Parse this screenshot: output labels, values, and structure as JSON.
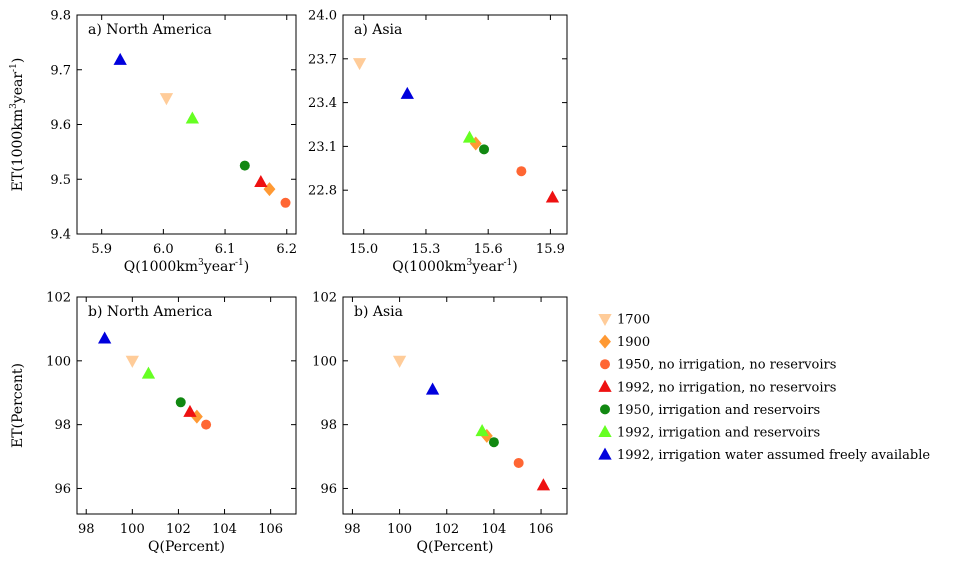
{
  "chart_data": [
    {
      "type": "scatter",
      "title": "a) North America",
      "xlabel": "Q(1000km³year⁻¹)",
      "ylabel": "ET(1000km³year⁻¹)",
      "xlim": [
        5.86,
        6.215
      ],
      "ylim": [
        9.4,
        9.8
      ],
      "xticks": [
        "5.9",
        "6.0",
        "6.1",
        "6.2"
      ],
      "yticks": [
        "9.4",
        "9.5",
        "9.6",
        "9.7",
        "9.8"
      ],
      "points": [
        {
          "series": "1700",
          "x": 6.005,
          "y": 9.648
        },
        {
          "series": "1900",
          "x": 6.172,
          "y": 9.482
        },
        {
          "series": "1950, no irrigation, no reservoirs",
          "x": 6.198,
          "y": 9.457
        },
        {
          "series": "1992, no irrigation, no reservoirs",
          "x": 6.158,
          "y": 9.495
        },
        {
          "series": "1950, irrigation and reservoirs",
          "x": 6.132,
          "y": 9.525
        },
        {
          "series": "1992, irrigation and reservoirs",
          "x": 6.047,
          "y": 9.611
        },
        {
          "series": "1992, irrigation water assumed freely available",
          "x": 5.93,
          "y": 9.718
        }
      ]
    },
    {
      "type": "scatter",
      "title": "a) Asia",
      "xlabel": "Q(1000km³year⁻¹)",
      "ylabel": "",
      "xlim": [
        14.9,
        15.98
      ],
      "ylim": [
        22.5,
        24.0
      ],
      "xticks": [
        "15.0",
        "15.3",
        "15.6",
        "15.9"
      ],
      "yticks": [
        "22.8",
        "23.1",
        "23.4",
        "23.7",
        "24.0"
      ],
      "points": [
        {
          "series": "1700",
          "x": 14.98,
          "y": 23.67
        },
        {
          "series": "1900",
          "x": 15.54,
          "y": 23.12
        },
        {
          "series": "1950, no irrigation, no reservoirs",
          "x": 15.76,
          "y": 22.93
        },
        {
          "series": "1992, no irrigation, no reservoirs",
          "x": 15.91,
          "y": 22.75
        },
        {
          "series": "1950, irrigation and reservoirs",
          "x": 15.58,
          "y": 23.08
        },
        {
          "series": "1992, irrigation and reservoirs",
          "x": 15.51,
          "y": 23.16
        },
        {
          "series": "1992, irrigation water assumed freely available",
          "x": 15.21,
          "y": 23.46
        }
      ]
    },
    {
      "type": "scatter",
      "title": "b) North America",
      "xlabel": "Q(Percent)",
      "ylabel": "ET(Percent)",
      "xlim": [
        97.6,
        107.1
      ],
      "ylim": [
        95.2,
        102
      ],
      "xticks": [
        "98",
        "100",
        "102",
        "104",
        "106"
      ],
      "yticks": [
        "96",
        "98",
        "100",
        "102"
      ],
      "points": [
        {
          "series": "1700",
          "x": 100.0,
          "y": 100.0
        },
        {
          "series": "1900",
          "x": 102.8,
          "y": 98.25
        },
        {
          "series": "1950, no irrigation, no reservoirs",
          "x": 103.2,
          "y": 98.0
        },
        {
          "series": "1992, no irrigation, no reservoirs",
          "x": 102.5,
          "y": 98.4
        },
        {
          "series": "1950, irrigation and reservoirs",
          "x": 102.1,
          "y": 98.7
        },
        {
          "series": "1992, irrigation and reservoirs",
          "x": 100.7,
          "y": 99.6
        },
        {
          "series": "1992, irrigation water assumed freely available",
          "x": 98.8,
          "y": 100.7
        }
      ]
    },
    {
      "type": "scatter",
      "title": "b) Asia",
      "xlabel": "Q(Percent)",
      "ylabel": "",
      "xlim": [
        97.6,
        107.1
      ],
      "ylim": [
        95.2,
        102
      ],
      "xticks": [
        "98",
        "100",
        "102",
        "104",
        "106"
      ],
      "yticks": [
        "96",
        "98",
        "100",
        "102"
      ],
      "points": [
        {
          "series": "1700",
          "x": 100.0,
          "y": 100.0
        },
        {
          "series": "1900",
          "x": 103.7,
          "y": 97.65
        },
        {
          "series": "1950, no irrigation, no reservoirs",
          "x": 105.05,
          "y": 96.8
        },
        {
          "series": "1992, no irrigation, no reservoirs",
          "x": 106.1,
          "y": 96.1
        },
        {
          "series": "1950, irrigation and reservoirs",
          "x": 104.0,
          "y": 97.45
        },
        {
          "series": "1992, irrigation and reservoirs",
          "x": 103.5,
          "y": 97.8
        },
        {
          "series": "1992, irrigation water assumed freely available",
          "x": 101.4,
          "y": 99.1
        }
      ]
    }
  ],
  "legend": [
    {
      "label": "1700",
      "marker": "triangle-down",
      "color": "#ffcc99"
    },
    {
      "label": "1900",
      "marker": "diamond",
      "color": "#ff9933"
    },
    {
      "label": "1950, no irrigation, no reservoirs",
      "marker": "circle",
      "color": "#ff6633"
    },
    {
      "label": "1992, no irrigation, no reservoirs",
      "marker": "triangle-up",
      "color": "#ee1111"
    },
    {
      "label": "1950, irrigation and reservoirs",
      "marker": "circle",
      "color": "#118811"
    },
    {
      "label": "1992, irrigation and reservoirs",
      "marker": "triangle-up",
      "color": "#66ff22"
    },
    {
      "label": "1992, irrigation water assumed freely available",
      "marker": "triangle-up",
      "color": "#0000dd"
    }
  ]
}
